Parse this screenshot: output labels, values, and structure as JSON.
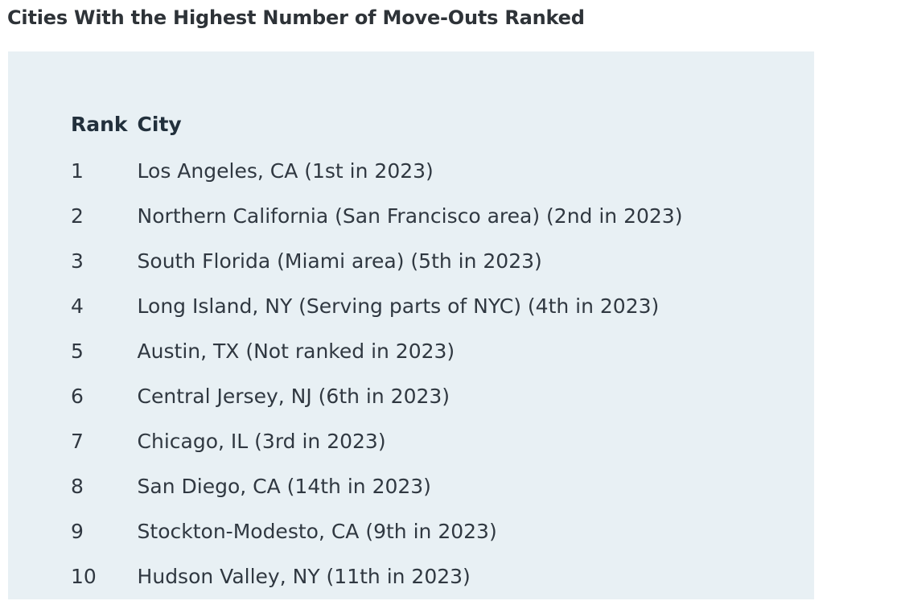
{
  "title": "Cities With the Highest Number of Move-Outs Ranked",
  "table": {
    "headers": [
      "Rank",
      "City"
    ],
    "rows": [
      {
        "rank": "1",
        "city": "Los Angeles, CA (1st in 2023)"
      },
      {
        "rank": "2",
        "city": "Northern California (San Francisco area) (2nd in 2023)"
      },
      {
        "rank": "3",
        "city": "South Florida (Miami area) (5th in 2023)"
      },
      {
        "rank": "4",
        "city": "Long Island, NY (Serving parts of NYC) (4th in 2023)"
      },
      {
        "rank": "5",
        "city": "Austin, TX (Not ranked in 2023)"
      },
      {
        "rank": "6",
        "city": "Central Jersey, NJ (6th in 2023)"
      },
      {
        "rank": "7",
        "city": "Chicago, IL (3rd in 2023)"
      },
      {
        "rank": "8",
        "city": "San Diego, CA (14th in 2023)"
      },
      {
        "rank": "9",
        "city": "Stockton-Modesto, CA (9th in 2023)"
      },
      {
        "rank": "10",
        "city": "Hudson Valley, NY (11th in 2023)"
      }
    ]
  },
  "colors": {
    "panel_background": "#e8f0f4",
    "text": "#303841"
  }
}
